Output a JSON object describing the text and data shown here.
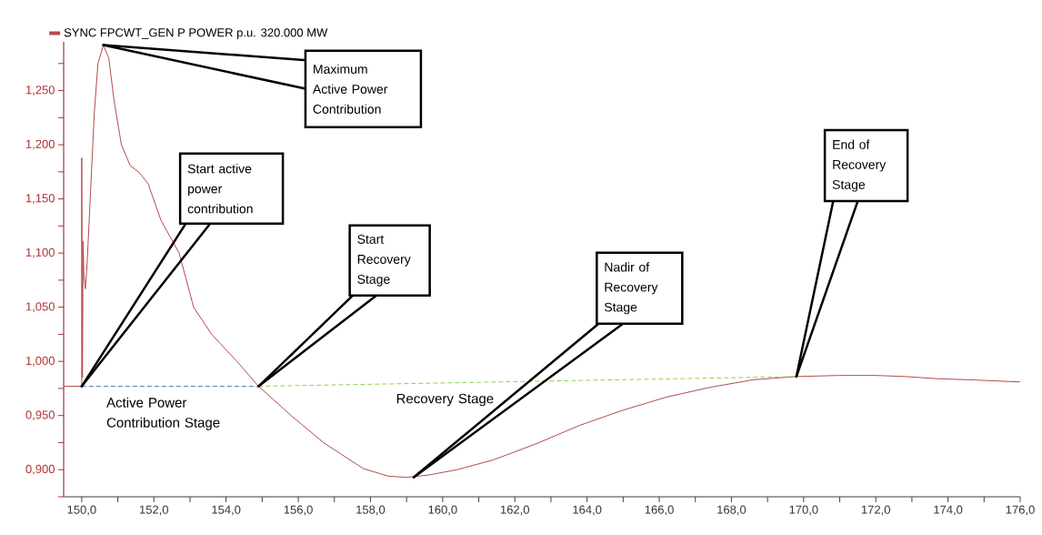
{
  "chart_data": {
    "type": "line",
    "series": [
      {
        "name": "SYNC FPCWT_GEN P POWER p.u. 320.000 MW",
        "color": "#b5494a",
        "x": [
          149.5,
          150.0,
          150.0,
          150.02,
          150.04,
          150.06,
          150.1,
          150.15,
          150.25,
          150.35,
          150.45,
          150.6,
          150.75,
          150.9,
          151.1,
          151.34,
          151.6,
          151.84,
          152.2,
          152.7,
          153.1,
          153.6,
          154.3,
          154.9,
          155.8,
          156.7,
          157.8,
          158.5,
          159.0,
          159.6,
          160.4,
          161.4,
          162.6,
          163.8,
          165.0,
          166.2,
          167.4,
          168.6,
          169.8,
          171.0,
          172.0,
          172.8,
          173.7,
          174.6,
          176.0
        ],
        "values": [
          0.977,
          0.977,
          1.188,
          0.985,
          1.111,
          1.08,
          1.067,
          1.09,
          1.16,
          1.23,
          1.275,
          1.292,
          1.28,
          1.24,
          1.2,
          1.181,
          1.174,
          1.164,
          1.13,
          1.1,
          1.05,
          1.025,
          1.0,
          0.977,
          0.95,
          0.925,
          0.901,
          0.894,
          0.893,
          0.895,
          0.9,
          0.909,
          0.924,
          0.941,
          0.955,
          0.967,
          0.976,
          0.983,
          0.986,
          0.987,
          0.987,
          0.986,
          0.984,
          0.983,
          0.981
        ]
      },
      {
        "name": "Active Power Contribution Stage",
        "color": "#4a7ebb",
        "line_style": "dashed",
        "x": [
          150.0,
          154.9
        ],
        "values": [
          0.977,
          0.977
        ]
      },
      {
        "name": "Recovery Stage",
        "color": "#92d050",
        "line_style": "dashed",
        "x": [
          154.9,
          169.8
        ],
        "values": [
          0.977,
          0.986
        ]
      }
    ],
    "annotations": [
      {
        "text": "Maximum Active Power Contribution",
        "x": 150.6,
        "y": 1.292
      },
      {
        "text": "Start active power contribution",
        "x": 150.0,
        "y": 0.977
      },
      {
        "text": "Start Recovery Stage",
        "x": 154.9,
        "y": 0.977
      },
      {
        "text": "Nadir of Recovery Stage",
        "x": 159.2,
        "y": 0.893
      },
      {
        "text": "End of Recovery Stage",
        "x": 169.8,
        "y": 0.986
      }
    ],
    "xlim": [
      149.5,
      176.0
    ],
    "ylim": [
      0.875,
      1.295
    ],
    "xticks": [
      {
        "value": 150,
        "label": "150,0"
      },
      {
        "value": 151,
        "label": null
      },
      {
        "value": 152,
        "label": "152,0"
      },
      {
        "value": 153,
        "label": null
      },
      {
        "value": 154,
        "label": "154,0"
      },
      {
        "value": 155,
        "label": null
      },
      {
        "value": 156,
        "label": "156,0"
      },
      {
        "value": 157,
        "label": null
      },
      {
        "value": 158,
        "label": "158,0"
      },
      {
        "value": 159,
        "label": null
      },
      {
        "value": 160,
        "label": "160,0"
      },
      {
        "value": 161,
        "label": null
      },
      {
        "value": 162,
        "label": "162,0"
      },
      {
        "value": 163,
        "label": null
      },
      {
        "value": 164,
        "label": "164,0"
      },
      {
        "value": 165,
        "label": null
      },
      {
        "value": 166,
        "label": "166,0"
      },
      {
        "value": 167,
        "label": null
      },
      {
        "value": 168,
        "label": "168,0"
      },
      {
        "value": 169,
        "label": null
      },
      {
        "value": 170,
        "label": "170,0"
      },
      {
        "value": 171,
        "label": null
      },
      {
        "value": 172,
        "label": "172,0"
      },
      {
        "value": 173,
        "label": null
      },
      {
        "value": 174,
        "label": "174,0"
      },
      {
        "value": 175,
        "label": null
      },
      {
        "value": 176,
        "label": "176,0"
      }
    ],
    "yticks": [
      {
        "value": 0.875,
        "label": null
      },
      {
        "value": 0.9,
        "label": "0,900"
      },
      {
        "value": 0.925,
        "label": null
      },
      {
        "value": 0.95,
        "label": "0,950"
      },
      {
        "value": 0.975,
        "label": null
      },
      {
        "value": 1.0,
        "label": "1,000"
      },
      {
        "value": 1.025,
        "label": null
      },
      {
        "value": 1.05,
        "label": "1,050"
      },
      {
        "value": 1.075,
        "label": null
      },
      {
        "value": 1.1,
        "label": "1,100"
      },
      {
        "value": 1.125,
        "label": null
      },
      {
        "value": 1.15,
        "label": "1,150"
      },
      {
        "value": 1.175,
        "label": null
      },
      {
        "value": 1.2,
        "label": "1,200"
      },
      {
        "value": 1.225,
        "label": null
      },
      {
        "value": 1.25,
        "label": "1,250"
      },
      {
        "value": 1.275,
        "label": null
      }
    ],
    "grid": false,
    "legend": "top left",
    "marker": "none",
    "line_style": "solid"
  }
}
